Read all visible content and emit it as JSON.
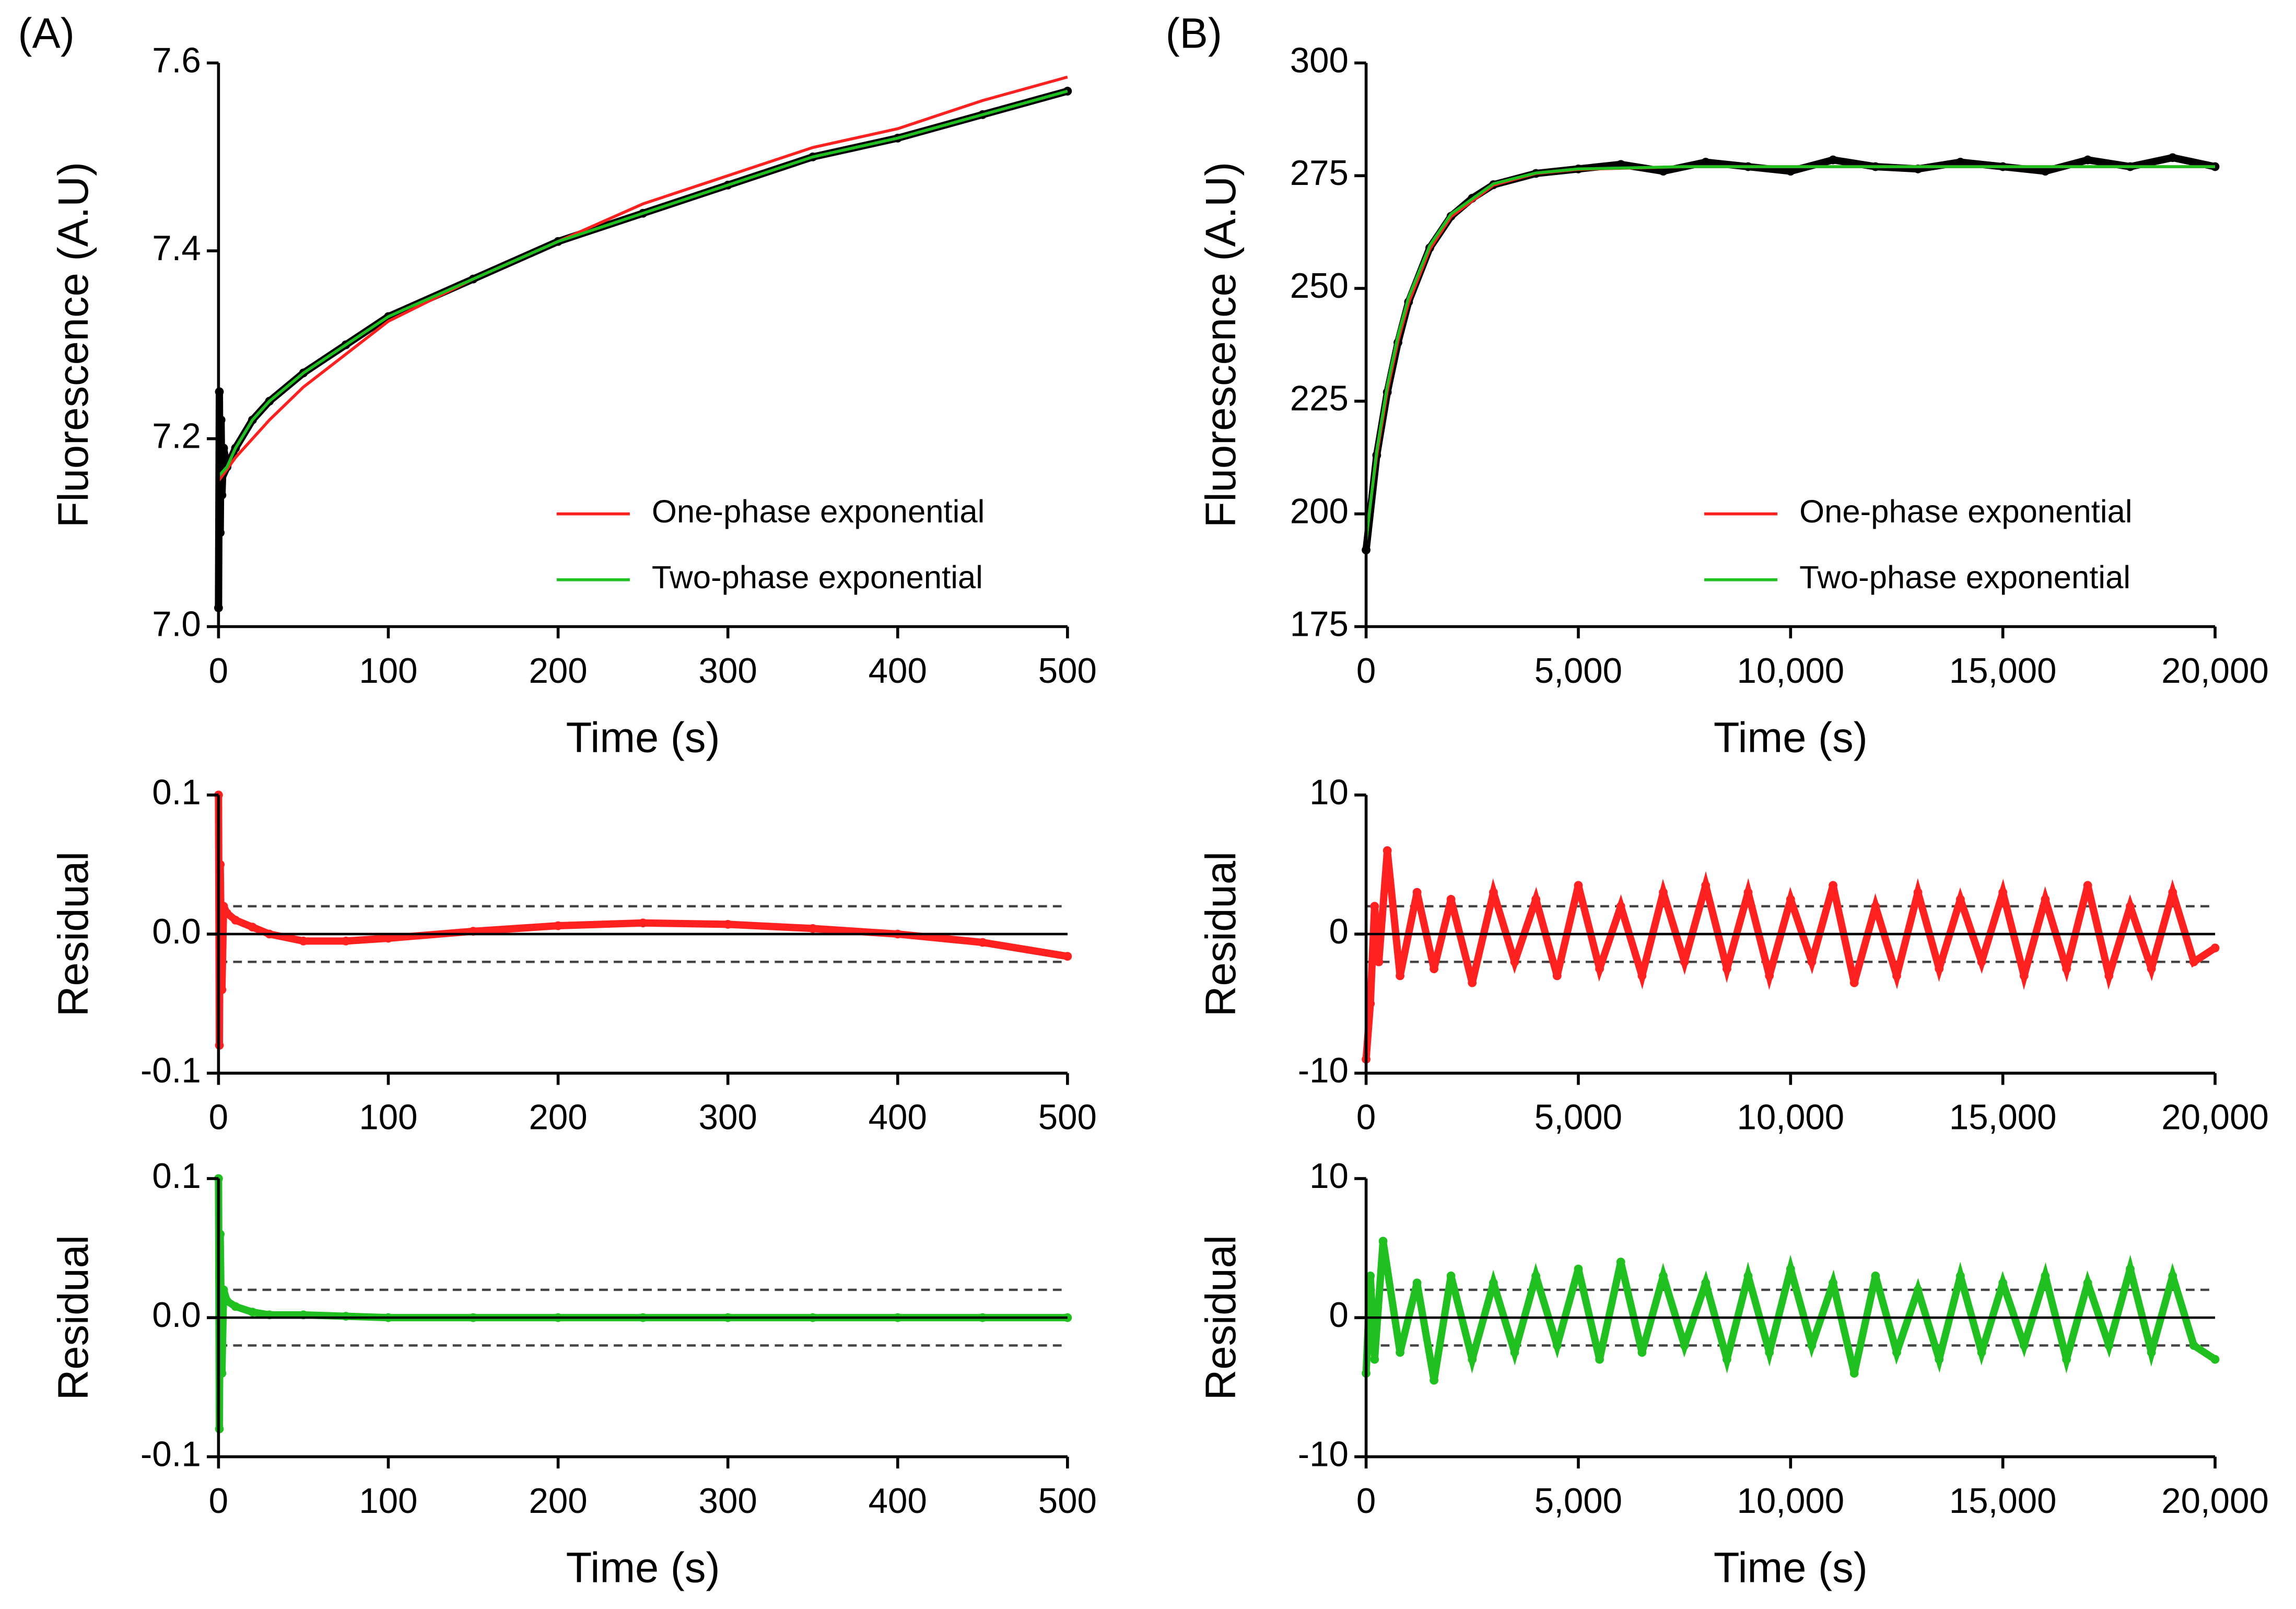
{
  "chart_data": [
    {
      "type": "scatter",
      "panel_label": "(A)",
      "ylabel": "Fluorescence (A.U)",
      "xlabel": "Time (s)",
      "xlim": [
        0,
        500
      ],
      "xticks": [
        0,
        100,
        200,
        300,
        400,
        500
      ],
      "ylim": [
        7.0,
        7.6
      ],
      "yticks": [
        {
          "value": 7.0,
          "label": "7.0"
        },
        7.2,
        7.4,
        7.6
      ],
      "legend": "lower right",
      "series": [
        {
          "color": "#000000",
          "mode": "points",
          "connect": true,
          "x": [
            0,
            0.5,
            1,
            1.5,
            2,
            3,
            5,
            10,
            20,
            30,
            50,
            75,
            100,
            150,
            200,
            250,
            300,
            350,
            400,
            450,
            500
          ],
          "values": [
            7.02,
            7.25,
            7.1,
            7.22,
            7.14,
            7.19,
            7.17,
            7.19,
            7.22,
            7.24,
            7.27,
            7.3,
            7.33,
            7.37,
            7.41,
            7.44,
            7.47,
            7.5,
            7.52,
            7.545,
            7.57
          ]
        },
        {
          "name": "One-phase exponential",
          "color": "#ff2020",
          "mode": "line",
          "x": [
            0,
            10,
            20,
            30,
            50,
            75,
            100,
            150,
            200,
            250,
            300,
            350,
            400,
            450,
            500
          ],
          "values": [
            7.155,
            7.18,
            7.2,
            7.22,
            7.255,
            7.29,
            7.325,
            7.37,
            7.41,
            7.45,
            7.48,
            7.51,
            7.53,
            7.56,
            7.585
          ]
        },
        {
          "name": "Two-phase exponential",
          "color": "#20c020",
          "mode": "line",
          "x": [
            0,
            5,
            10,
            20,
            30,
            50,
            75,
            100,
            150,
            200,
            250,
            300,
            350,
            400,
            450,
            500
          ],
          "values": [
            7.16,
            7.17,
            7.19,
            7.22,
            7.24,
            7.27,
            7.3,
            7.33,
            7.37,
            7.41,
            7.44,
            7.47,
            7.5,
            7.52,
            7.545,
            7.57
          ]
        }
      ]
    },
    {
      "type": "scatter",
      "ylabel": "Residual",
      "xlim": [
        0,
        500
      ],
      "xticks": [
        0,
        100,
        200,
        300,
        400,
        500
      ],
      "ylim": [
        -0.1,
        0.1
      ],
      "yticks": [
        -0.1,
        {
          "value": 0,
          "label": "0.0"
        },
        0.1
      ],
      "hlines": [
        {
          "value": 0,
          "style": "solid"
        },
        {
          "value": 0.02,
          "style": "dashed"
        },
        {
          "value": -0.02,
          "style": "dashed"
        }
      ],
      "series": [
        {
          "color": "#ff2020",
          "mode": "points",
          "connect": true,
          "x": [
            0,
            0.5,
            1,
            2,
            3,
            5,
            10,
            20,
            30,
            50,
            75,
            100,
            150,
            200,
            250,
            300,
            350,
            400,
            450,
            500
          ],
          "values": [
            0.1,
            -0.08,
            0.05,
            -0.04,
            0.02,
            0.015,
            0.01,
            0.005,
            0,
            -0.005,
            -0.005,
            -0.003,
            0.002,
            0.006,
            0.008,
            0.007,
            0.004,
            0,
            -0.006,
            -0.016
          ]
        }
      ]
    },
    {
      "type": "scatter",
      "ylabel": "Residual",
      "xlabel": "Time (s)",
      "xlim": [
        0,
        500
      ],
      "xticks": [
        0,
        100,
        200,
        300,
        400,
        500
      ],
      "ylim": [
        -0.1,
        0.1
      ],
      "yticks": [
        -0.1,
        {
          "value": 0,
          "label": "0.0"
        },
        0.1
      ],
      "hlines": [
        {
          "value": 0,
          "style": "solid"
        },
        {
          "value": 0.02,
          "style": "dashed"
        },
        {
          "value": -0.02,
          "style": "dashed"
        }
      ],
      "series": [
        {
          "color": "#20c020",
          "mode": "points",
          "connect": true,
          "x": [
            0,
            0.5,
            1,
            2,
            3,
            5,
            10,
            20,
            30,
            50,
            75,
            100,
            150,
            200,
            250,
            300,
            350,
            400,
            450,
            500
          ],
          "values": [
            0.1,
            -0.08,
            0.06,
            -0.04,
            0.02,
            0.012,
            0.008,
            0.004,
            0.002,
            0.002,
            0.001,
            0,
            0,
            0,
            0,
            0,
            0,
            0,
            0,
            0
          ]
        }
      ]
    },
    {
      "type": "scatter",
      "panel_label": "(B)",
      "ylabel": "Fluorescence (A.U)",
      "xlabel": "Time (s)",
      "xlim": [
        0,
        20000
      ],
      "xticks": [
        0,
        {
          "value": 5000,
          "label": "5,000"
        },
        {
          "value": 10000,
          "label": "10,000"
        },
        {
          "value": 15000,
          "label": "15,000"
        },
        {
          "value": 20000,
          "label": "20,000"
        }
      ],
      "ylim": [
        175,
        300
      ],
      "yticks": [
        175,
        200,
        225,
        250,
        275,
        300
      ],
      "legend": "lower right",
      "series": [
        {
          "color": "#000000",
          "mode": "points",
          "connect": true,
          "x": [
            0,
            250,
            500,
            750,
            1000,
            1500,
            2000,
            2500,
            3000,
            4000,
            5000,
            6000,
            7000,
            8000,
            9000,
            10000,
            11000,
            12000,
            13000,
            14000,
            15000,
            16000,
            17000,
            18000,
            19000,
            20000
          ],
          "values": [
            192,
            213,
            227,
            238,
            247,
            259,
            266,
            270,
            273,
            275.5,
            276.5,
            277.5,
            276,
            278,
            277,
            276,
            278.5,
            277,
            276.5,
            278,
            277,
            276,
            278.5,
            277,
            279,
            277
          ]
        },
        {
          "name": "One-phase exponential",
          "color": "#ff2020",
          "mode": "line",
          "x": [
            0,
            250,
            500,
            750,
            1000,
            1500,
            2000,
            3000,
            4000,
            5000,
            7500,
            10000,
            15000,
            20000
          ],
          "values": [
            195,
            213,
            227.3,
            238.3,
            246.8,
            258.7,
            265.9,
            272.9,
            275.5,
            276.4,
            277,
            277,
            277,
            277
          ]
        },
        {
          "name": "Two-phase exponential",
          "color": "#20c020",
          "mode": "line",
          "x": [
            0,
            250,
            500,
            750,
            1000,
            1500,
            2000,
            3000,
            4000,
            5000,
            7500,
            10000,
            15000,
            20000
          ],
          "values": [
            194,
            214,
            228.5,
            239.5,
            248,
            259.5,
            266.5,
            273.2,
            275.6,
            276.5,
            277,
            277,
            277,
            277
          ]
        }
      ]
    },
    {
      "type": "scatter",
      "ylabel": "Residual",
      "xlim": [
        0,
        20000
      ],
      "xticks": [
        0,
        {
          "value": 5000,
          "label": "5,000"
        },
        {
          "value": 10000,
          "label": "10,000"
        },
        {
          "value": 15000,
          "label": "15,000"
        },
        {
          "value": 20000,
          "label": "20,000"
        }
      ],
      "ylim": [
        -10,
        10
      ],
      "yticks": [
        -10,
        0,
        10
      ],
      "hlines": [
        {
          "value": 0,
          "style": "solid"
        },
        {
          "value": 2,
          "style": "dashed"
        },
        {
          "value": -2,
          "style": "dashed"
        }
      ],
      "series": [
        {
          "color": "#ff2020",
          "mode": "points",
          "connect": true,
          "x": [
            0,
            100,
            200,
            300,
            500,
            800,
            1200,
            1600,
            2000,
            2500,
            3000,
            3500,
            4000,
            4500,
            5000,
            5500,
            6000,
            6500,
            7000,
            7500,
            8000,
            8500,
            9000,
            9500,
            10000,
            10500,
            11000,
            11500,
            12000,
            12500,
            13000,
            13500,
            14000,
            14500,
            15000,
            15500,
            16000,
            16500,
            17000,
            17500,
            18000,
            18500,
            19000,
            19500,
            20000
          ],
          "values": [
            -9,
            -5,
            2,
            -2,
            6,
            -3,
            3,
            -2.5,
            2.5,
            -3.5,
            3,
            -2,
            2.5,
            -3,
            3.5,
            -2.5,
            2,
            -3,
            3,
            -2,
            3.5,
            -2.5,
            3,
            -3,
            2.5,
            -2,
            3.5,
            -3.5,
            2,
            -3,
            3,
            -2.5,
            2.5,
            -2,
            3,
            -3,
            2.5,
            -2.5,
            3.5,
            -3,
            2,
            -2.5,
            3,
            -2,
            -1
          ]
        }
      ]
    },
    {
      "type": "scatter",
      "ylabel": "Residual",
      "xlabel": "Time (s)",
      "xlim": [
        0,
        20000
      ],
      "xticks": [
        0,
        {
          "value": 5000,
          "label": "5,000"
        },
        {
          "value": 10000,
          "label": "10,000"
        },
        {
          "value": 15000,
          "label": "15,000"
        },
        {
          "value": 20000,
          "label": "20,000"
        }
      ],
      "ylim": [
        -10,
        10
      ],
      "yticks": [
        -10,
        0,
        10
      ],
      "hlines": [
        {
          "value": 0,
          "style": "solid"
        },
        {
          "value": 2,
          "style": "dashed"
        },
        {
          "value": -2,
          "style": "dashed"
        }
      ],
      "series": [
        {
          "color": "#20c020",
          "mode": "points",
          "connect": true,
          "x": [
            0,
            100,
            200,
            400,
            800,
            1200,
            1600,
            2000,
            2500,
            3000,
            3500,
            4000,
            4500,
            5000,
            5500,
            6000,
            6500,
            7000,
            7500,
            8000,
            8500,
            9000,
            9500,
            10000,
            10500,
            11000,
            11500,
            12000,
            12500,
            13000,
            13500,
            14000,
            14500,
            15000,
            15500,
            16000,
            16500,
            17000,
            17500,
            18000,
            18500,
            19000,
            19500,
            20000
          ],
          "values": [
            -4,
            3,
            -3,
            5.5,
            -2.5,
            2.5,
            -4.5,
            3,
            -3,
            2.5,
            -2.5,
            3,
            -2,
            3.5,
            -3,
            4,
            -2.5,
            3,
            -2,
            2.5,
            -3,
            3,
            -2.5,
            3.5,
            -2,
            2.5,
            -4,
            3,
            -2.5,
            2,
            -3,
            3,
            -2.5,
            2.5,
            -2,
            3,
            -3,
            2.5,
            -2,
            3.5,
            -2.5,
            3,
            -2,
            -3
          ]
        }
      ]
    }
  ]
}
